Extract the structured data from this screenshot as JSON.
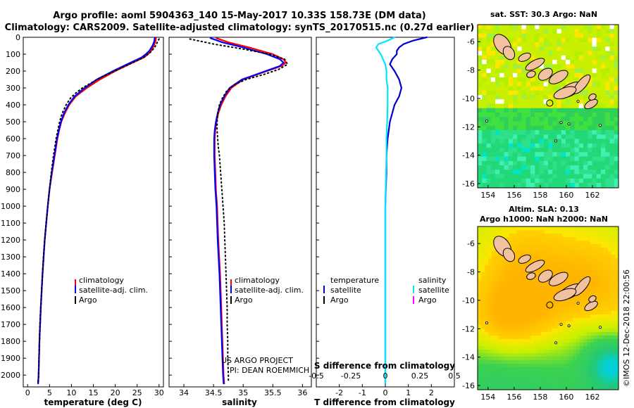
{
  "header": {
    "line1": "Argo profile: aoml 5904363_140 15-May-2017 10.33S 158.73E (DM data)",
    "line2": "Climatology: CARS2009. Satellite-adjusted climatology: synTS_20170515.nc (0.27d earlier)"
  },
  "colors": {
    "climatology": "#ff0000",
    "satellite": "#0000ff",
    "argo": "#000000",
    "t_diff": "#0000cc",
    "s_diff": "#00e5ff",
    "s_argo": "#ff00ff",
    "land": "#f2c2a0"
  },
  "depth_ticks": [
    "0",
    "100",
    "200",
    "300",
    "400",
    "500",
    "600",
    "700",
    "800",
    "900",
    "1000",
    "1100",
    "1200",
    "1300",
    "1400",
    "1500",
    "1600",
    "1700",
    "1800",
    "1900",
    "2000"
  ],
  "chart_data": [
    {
      "type": "line",
      "name": "temperature-profile",
      "xlabel": "temperature (deg C)",
      "xlim": [
        -1,
        31
      ],
      "xticks": [
        "0",
        "5",
        "10",
        "15",
        "20",
        "25",
        "30"
      ],
      "ylim": [
        0,
        2070
      ],
      "legend": [
        "climatology",
        "satellite-adj. clim.",
        "Argo"
      ],
      "series": [
        {
          "name": "climatology",
          "depth": [
            5,
            25,
            50,
            80,
            100,
            120,
            150,
            200,
            250,
            300,
            350,
            400,
            450,
            500,
            550,
            600,
            700,
            800,
            900,
            1000,
            1200,
            1400,
            1600,
            1800,
            2000,
            2050
          ],
          "values": [
            29.3,
            29.2,
            28.8,
            28.2,
            27.5,
            26.5,
            24.0,
            20.0,
            16.5,
            13.5,
            11.0,
            9.5,
            8.5,
            7.7,
            7.2,
            6.8,
            6.2,
            5.6,
            5.0,
            4.6,
            3.9,
            3.4,
            3.0,
            2.7,
            2.5,
            2.4
          ]
        },
        {
          "name": "satellite-adj. clim.",
          "depth": [
            5,
            25,
            50,
            80,
            100,
            120,
            150,
            200,
            250,
            300,
            350,
            400,
            450,
            500,
            550,
            600,
            700,
            800,
            900,
            1000,
            1200,
            1400,
            1600,
            1800,
            2000,
            2050
          ],
          "values": [
            29.0,
            28.9,
            28.5,
            27.8,
            27.0,
            26.0,
            23.5,
            19.5,
            15.8,
            13.0,
            10.7,
            9.3,
            8.3,
            7.6,
            7.1,
            6.7,
            6.1,
            5.5,
            5.0,
            4.6,
            3.9,
            3.4,
            3.0,
            2.7,
            2.5,
            2.4
          ]
        },
        {
          "name": "Argo",
          "depth": [
            10,
            30,
            60,
            90,
            120,
            150,
            180,
            210,
            240,
            270,
            300,
            330,
            360,
            400,
            450,
            500,
            550,
            600,
            650,
            700,
            800,
            900,
            1000,
            1100,
            1200,
            1300,
            1400,
            1500,
            1600,
            1700,
            1800,
            1900,
            2000,
            2040
          ],
          "values": [
            30.0,
            29.6,
            29.0,
            28.0,
            26.5,
            24.0,
            21.5,
            19.0,
            16.5,
            14.5,
            12.5,
            11.0,
            9.8,
            8.8,
            7.9,
            7.3,
            6.9,
            6.5,
            6.2,
            5.9,
            5.4,
            5.0,
            4.6,
            4.2,
            3.9,
            3.6,
            3.4,
            3.2,
            3.0,
            2.8,
            2.7,
            2.6,
            2.5,
            2.4
          ]
        }
      ]
    },
    {
      "type": "line",
      "name": "salinity-profile",
      "xlabel": "salinity",
      "xlim": [
        33.75,
        36.15
      ],
      "xticks": [
        "34",
        "34.5",
        "35",
        "35.5",
        "36"
      ],
      "ylim": [
        0,
        2070
      ],
      "legend": [
        "climatology",
        "satellite-adj. clim.",
        "Argo"
      ],
      "annotations": [
        "US ARGO PROJECT",
        "PI: DEAN ROEMMICH"
      ],
      "series": [
        {
          "name": "climatology",
          "depth": [
            5,
            30,
            60,
            100,
            130,
            150,
            170,
            200,
            250,
            300,
            350,
            400,
            450,
            500,
            550,
            600,
            700,
            800,
            900,
            1000,
            1200,
            1400,
            1600,
            1800,
            2000,
            2050
          ],
          "values": [
            34.55,
            34.75,
            35.1,
            35.5,
            35.68,
            35.72,
            35.65,
            35.4,
            35.0,
            34.8,
            34.7,
            34.63,
            34.58,
            34.55,
            34.53,
            34.52,
            34.52,
            34.53,
            34.54,
            34.56,
            34.58,
            34.61,
            34.63,
            34.65,
            34.67,
            34.68
          ]
        },
        {
          "name": "satellite-adj. clim.",
          "depth": [
            5,
            30,
            60,
            100,
            130,
            150,
            170,
            200,
            250,
            300,
            350,
            400,
            450,
            500,
            550,
            600,
            700,
            800,
            900,
            1000,
            1200,
            1400,
            1600,
            1800,
            2000,
            2050
          ],
          "values": [
            34.45,
            34.65,
            35.0,
            35.4,
            35.62,
            35.68,
            35.62,
            35.38,
            34.98,
            34.77,
            34.68,
            34.61,
            34.57,
            34.54,
            34.52,
            34.51,
            34.51,
            34.52,
            34.53,
            34.55,
            34.57,
            34.6,
            34.62,
            34.64,
            34.66,
            34.67
          ]
        },
        {
          "name": "Argo",
          "depth": [
            10,
            40,
            70,
            100,
            130,
            160,
            190,
            220,
            250,
            280,
            320,
            360,
            400,
            450,
            500,
            550,
            600,
            650,
            700,
            800,
            900,
            1000,
            1100,
            1200,
            1300,
            1400,
            1500,
            1600,
            1700,
            1800,
            1900,
            2000,
            2040
          ],
          "values": [
            34.1,
            34.5,
            35.0,
            35.45,
            35.7,
            35.75,
            35.6,
            35.35,
            35.05,
            34.85,
            34.72,
            34.65,
            34.6,
            34.57,
            34.56,
            34.56,
            34.57,
            34.58,
            34.6,
            34.62,
            34.64,
            34.66,
            34.68,
            34.69,
            34.7,
            34.71,
            34.72,
            34.73,
            34.73,
            34.74,
            34.74,
            34.75,
            34.75
          ]
        }
      ]
    },
    {
      "type": "line",
      "name": "difference-profile",
      "xlabel": "T difference from climatology",
      "xlim": [
        -3,
        3
      ],
      "xticks": [
        "-2",
        "-1",
        "0",
        "1",
        "2"
      ],
      "x2label": "S difference from climatology",
      "x2ticks": [
        "-0.5",
        "-0.25",
        "0",
        "0.25",
        "0.5"
      ],
      "ylim": [
        0,
        2070
      ],
      "legend_title_left": "temperature",
      "legend_title_right": "salinity",
      "legend_left": [
        "satellite",
        "Argo"
      ],
      "legend_right": [
        "satellite",
        "Argo"
      ],
      "series": [
        {
          "name": "temperature satellite",
          "depth": [
            0,
            20,
            40,
            60,
            80,
            100,
            130,
            160,
            200,
            250,
            300,
            350,
            400,
            450,
            500,
            600,
            700,
            800,
            900,
            1000,
            1200,
            1400,
            1600,
            1800,
            2000,
            2050
          ],
          "values": [
            1.8,
            1.2,
            0.8,
            0.6,
            0.5,
            0.5,
            0.3,
            0.2,
            0.4,
            0.6,
            0.7,
            0.6,
            0.4,
            0.3,
            0.2,
            0.1,
            0.05,
            0.05,
            0.02,
            0.0,
            0.0,
            0.0,
            0.0,
            0.0,
            0.0,
            0.0
          ]
        },
        {
          "name": "salinity satellite",
          "depth": [
            0,
            20,
            40,
            60,
            80,
            100,
            130,
            160,
            200,
            250,
            300,
            400,
            500,
            600,
            700,
            800,
            1000,
            1200,
            1400,
            1600,
            1800,
            2000,
            2050
          ],
          "values": [
            0.4,
            0.1,
            -0.3,
            -0.4,
            -0.3,
            -0.2,
            -0.1,
            0.0,
            0.05,
            0.05,
            0.1,
            0.1,
            0.08,
            0.05,
            0.05,
            0.03,
            0.0,
            0.0,
            0.0,
            0.0,
            0.0,
            0.0,
            0.0
          ]
        }
      ]
    },
    {
      "type": "heatmap",
      "name": "sst-map",
      "title": "sat. SST: 30.3 Argo: NaN",
      "xticks": [
        "154",
        "156",
        "158",
        "160",
        "162"
      ],
      "yticks": [
        "-6",
        "-8",
        "-10",
        "-12",
        "-14",
        "-16"
      ],
      "xlim": [
        153.2,
        164
      ],
      "ylim": [
        -16.3,
        -4.8
      ],
      "float_position": {
        "lon": 158.73,
        "lat": -10.33
      }
    },
    {
      "type": "heatmap",
      "name": "sla-map",
      "title": "Altim. SLA: 0.13",
      "subtitle": "Argo h1000: NaN h2000: NaN",
      "xticks": [
        "154",
        "156",
        "158",
        "160",
        "162"
      ],
      "yticks": [
        "-6",
        "-8",
        "-10",
        "-12",
        "-14",
        "-16"
      ],
      "xlim": [
        153.2,
        164
      ],
      "ylim": [
        -16.3,
        -4.8
      ],
      "float_position": {
        "lon": 158.73,
        "lat": -10.33
      }
    }
  ],
  "footer": {
    "stamp": "©IMOS 12-Dec-2018 22:00:56"
  }
}
